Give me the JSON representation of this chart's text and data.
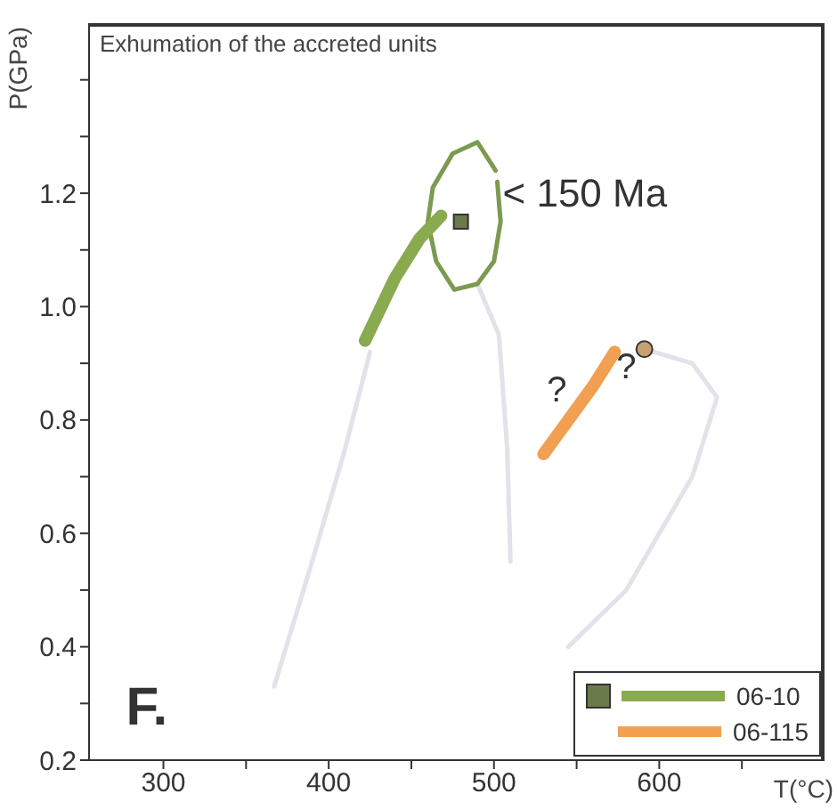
{
  "chart_data": {
    "type": "line",
    "title": "Exhumation of the accreted units",
    "xlabel": "T(°C)",
    "ylabel": "P(GPa)",
    "xlim": [
      255,
      700
    ],
    "xticks": [
      300,
      {
        "value": 350,
        "label": null
      },
      400,
      {
        "value": 450,
        "label": null
      },
      500,
      {
        "value": 550,
        "label": null
      },
      600,
      {
        "value": 650,
        "label": null
      }
    ],
    "ylim": [
      0.2,
      1.5
    ],
    "yticks": [
      0.2,
      {
        "value": 0.3,
        "label": null
      },
      0.4,
      {
        "value": 0.5,
        "label": null
      },
      0.6,
      {
        "value": 0.7,
        "label": null
      },
      0.8,
      {
        "value": 0.9,
        "label": null
      },
      {
        "value": 1.0,
        "label": "1.0"
      },
      {
        "value": 1.1,
        "label": null
      },
      1.2,
      {
        "value": 1.3,
        "label": null
      },
      {
        "value": 1.4,
        "label": null
      }
    ],
    "grid": false,
    "legend": "bottom right",
    "marker": "none",
    "annotations": [
      "< 150 Ma",
      "?",
      "?",
      "F."
    ],
    "series": [
      {
        "color": "#e2e2ea",
        "x": [
          367,
          390,
          410,
          425
        ],
        "values": [
          0.33,
          0.55,
          0.75,
          0.92
        ]
      },
      {
        "color": "#e2e2ea",
        "x": [
          490,
          503,
          508,
          510
        ],
        "values": [
          1.04,
          0.95,
          0.75,
          0.55
        ]
      },
      {
        "color": "#e2e2ea",
        "x": [
          591,
          620,
          635,
          620,
          580,
          545
        ],
        "values": [
          0.925,
          0.9,
          0.84,
          0.7,
          0.5,
          0.4
        ]
      },
      {
        "color": "#7c9a50",
        "x": [
          501,
          490,
          475,
          463,
          460,
          465,
          476,
          490,
          500,
          504,
          502
        ],
        "values": [
          1.24,
          1.29,
          1.27,
          1.21,
          1.15,
          1.08,
          1.03,
          1.04,
          1.08,
          1.15,
          1.22
        ]
      },
      {
        "name": "06-10",
        "color": "#8aaa50",
        "x": [
          422,
          440,
          455,
          468
        ],
        "values": [
          0.94,
          1.05,
          1.12,
          1.16
        ]
      },
      {
        "type": "scatter",
        "marker": "square",
        "color": "#6b7a4a",
        "x": [
          480
        ],
        "values": [
          1.15
        ]
      },
      {
        "name": "06-115",
        "color": "#f0a050",
        "x": [
          573,
          560,
          545,
          530
        ],
        "values": [
          0.92,
          0.86,
          0.8,
          0.74
        ]
      },
      {
        "type": "scatter",
        "marker": "circle",
        "color": "#c8a070",
        "x": [
          591
        ],
        "values": [
          0.925
        ]
      }
    ]
  }
}
